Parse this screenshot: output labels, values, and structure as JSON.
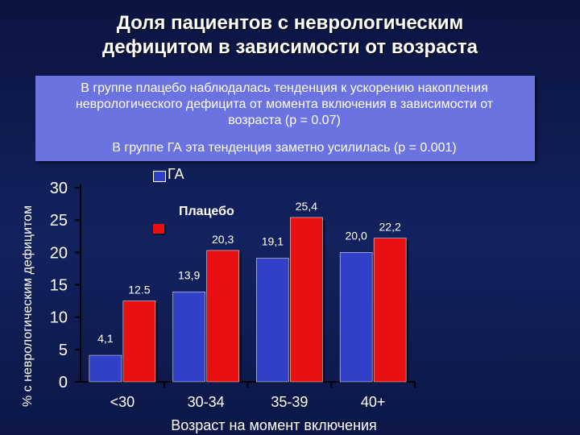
{
  "title_line1": "Доля пациентов с неврологическим",
  "title_line2": "дефицитом в зависимости от возраста",
  "note_lines": [
    "В группе плацебо наблюдалась тенденция к ускорению накопления",
    "неврологического дефицита от момента включения в зависимости от",
    "возраста (p = 0.07)"
  ],
  "note2": "В группе ГА эта тенденция заметно усилилась (p = 0.001)",
  "colors": {
    "blue": "#3040c8",
    "red": "#e81010"
  },
  "chart_data": {
    "type": "bar",
    "title": "Доля пациентов с неврологическим дефицитом в зависимости от возраста",
    "xlabel": "Возраст на момент включения",
    "ylabel": "% с неврологическим дефицитом",
    "categories": [
      "<30",
      "30-34",
      "35-39",
      "40+"
    ],
    "series": [
      {
        "name": "Плацебо",
        "values": [
          4.1,
          13.9,
          19.1,
          20.0
        ],
        "labels": [
          "4,1",
          "13,9",
          "19,1",
          "20,0"
        ]
      },
      {
        "name": "ГА",
        "values": [
          12.5,
          20.3,
          25.4,
          22.2
        ],
        "labels": [
          "12.5",
          "20,3",
          "25,4",
          "22,2"
        ]
      }
    ],
    "ylim": [
      0,
      30
    ],
    "yticks": [
      0,
      5,
      10,
      15,
      20,
      25,
      30
    ],
    "legend_placement": "top-left inside plot",
    "grid": false
  }
}
